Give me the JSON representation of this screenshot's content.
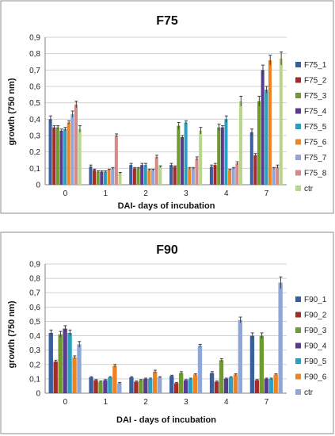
{
  "colors": {
    "F75_1": "#3a5f9e",
    "F75_2": "#a62a27",
    "F75_3": "#6f9b2e",
    "F75_4": "#5a3c8c",
    "F75_5": "#2a9fc0",
    "F75_6": "#ee8320",
    "F75_7": "#8ea6d8",
    "F75_8": "#d58a88",
    "ctr": "#b8d68a",
    "F90_1": "#3a5f9e",
    "F90_2": "#a62a27",
    "F90_3": "#6f9b2e",
    "F90_4": "#5a3c8c",
    "F90_5": "#2a9fc0",
    "F90_6": "#ee8320",
    "ctr90": "#8ea6d8"
  },
  "chart_data": [
    {
      "type": "bar",
      "title": "F75",
      "xlabel": "DAI- days of incubation",
      "ylabel": "growth (750 nm)",
      "ylim": [
        0,
        0.9
      ],
      "yticks": [
        "0",
        "0,1",
        "0,2",
        "0,3",
        "0,4",
        "0,5",
        "0,6",
        "0,7",
        "0,8",
        "0,9"
      ],
      "categories": [
        "0",
        "1",
        "2",
        "3",
        "4",
        "7"
      ],
      "legend_position": "right",
      "grid": true,
      "series": [
        {
          "name": "F75_1",
          "values": [
            0.4,
            0.11,
            0.12,
            0.12,
            0.11,
            0.32
          ]
        },
        {
          "name": "F75_2",
          "values": [
            0.35,
            0.09,
            0.1,
            0.11,
            0.12,
            0.18
          ]
        },
        {
          "name": "F75_3",
          "values": [
            0.35,
            0.08,
            0.1,
            0.36,
            0.35,
            0.51
          ]
        },
        {
          "name": "F75_4",
          "values": [
            0.33,
            0.08,
            0.12,
            0.29,
            0.35,
            0.7
          ]
        },
        {
          "name": "F75_5",
          "values": [
            0.34,
            0.08,
            0.12,
            0.38,
            0.4,
            0.58
          ]
        },
        {
          "name": "F75_6",
          "values": [
            0.38,
            0.09,
            0.09,
            0.1,
            0.09,
            0.76
          ]
        },
        {
          "name": "F75_7",
          "values": [
            0.43,
            0.1,
            0.09,
            0.1,
            0.1,
            0.1
          ]
        },
        {
          "name": "F75_8",
          "values": [
            0.49,
            0.3,
            0.17,
            0.16,
            0.13,
            0.11
          ]
        },
        {
          "name": "ctr",
          "values": [
            0.34,
            0.07,
            0.11,
            0.33,
            0.51,
            0.77
          ]
        }
      ],
      "errors": [
        [
          0.02,
          0.01,
          0.01,
          0.01,
          0.01,
          0.02
        ],
        [
          0.01,
          0.005,
          0.005,
          0.005,
          0.01,
          0.01
        ],
        [
          0.01,
          0.005,
          0.005,
          0.02,
          0.02,
          0.03
        ],
        [
          0.01,
          0.005,
          0.01,
          0.01,
          0.01,
          0.03
        ],
        [
          0.01,
          0.005,
          0.01,
          0.01,
          0.02,
          0.02
        ],
        [
          0.01,
          0.005,
          0.005,
          0.005,
          0.005,
          0.03
        ],
        [
          0.02,
          0.005,
          0.005,
          0.005,
          0.005,
          0.005
        ],
        [
          0.02,
          0.01,
          0.01,
          0.01,
          0.01,
          0.01
        ],
        [
          0.02,
          0.005,
          0.005,
          0.02,
          0.03,
          0.04
        ]
      ]
    },
    {
      "type": "bar",
      "title": "F90",
      "xlabel": "DAI - days of incubation",
      "ylabel": "growth (750 nm)",
      "ylim": [
        0,
        0.9
      ],
      "yticks": [
        "0",
        "0,1",
        "0,2",
        "0,3",
        "0,4",
        "0,5",
        "0,6",
        "0,7",
        "0,8",
        "0,9"
      ],
      "categories": [
        "0",
        "1",
        "2",
        "3",
        "4",
        "7"
      ],
      "legend_position": "right",
      "grid": true,
      "series": [
        {
          "name": "F90_1",
          "values": [
            0.42,
            0.11,
            0.11,
            0.12,
            0.14,
            0.4
          ]
        },
        {
          "name": "F90_2",
          "values": [
            0.22,
            0.09,
            0.08,
            0.07,
            0.08,
            0.09
          ]
        },
        {
          "name": "F90_3",
          "values": [
            0.41,
            0.08,
            0.09,
            0.14,
            0.23,
            0.4
          ]
        },
        {
          "name": "F90_4",
          "values": [
            0.45,
            0.09,
            0.1,
            0.09,
            0.1,
            0.1
          ]
        },
        {
          "name": "F90_5",
          "values": [
            0.42,
            0.11,
            0.1,
            0.1,
            0.11,
            0.1
          ]
        },
        {
          "name": "F90_6",
          "values": [
            0.25,
            0.19,
            0.15,
            0.13,
            0.13,
            0.13
          ]
        },
        {
          "name": "ctr",
          "values": [
            0.34,
            0.07,
            0.11,
            0.33,
            0.51,
            0.77
          ]
        }
      ],
      "errors": [
        [
          0.02,
          0.005,
          0.005,
          0.005,
          0.01,
          0.02
        ],
        [
          0.01,
          0.005,
          0.005,
          0.005,
          0.005,
          0.005
        ],
        [
          0.02,
          0.005,
          0.005,
          0.01,
          0.01,
          0.02
        ],
        [
          0.02,
          0.005,
          0.005,
          0.005,
          0.005,
          0.005
        ],
        [
          0.02,
          0.005,
          0.005,
          0.005,
          0.005,
          0.005
        ],
        [
          0.01,
          0.01,
          0.01,
          0.005,
          0.005,
          0.005
        ],
        [
          0.02,
          0.005,
          0.005,
          0.01,
          0.02,
          0.04
        ]
      ]
    }
  ]
}
